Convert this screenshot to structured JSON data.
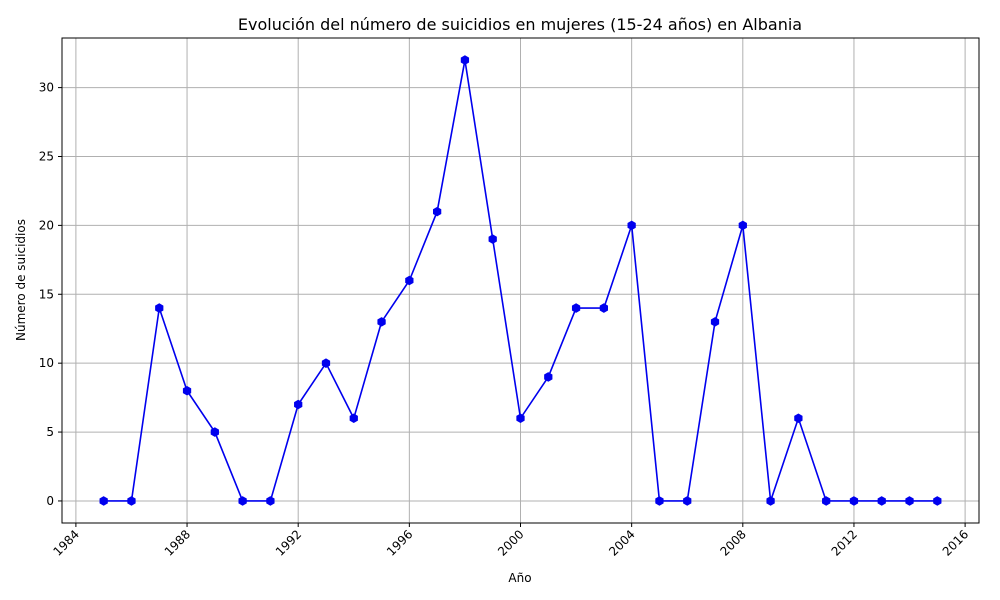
{
  "chart_data": {
    "type": "line",
    "title": "Evolución del número de suicidios en mujeres (15-24 años) en Albania",
    "xlabel": "Año",
    "ylabel": "Número de suicidios",
    "x": [
      1985,
      1986,
      1987,
      1988,
      1989,
      1990,
      1991,
      1992,
      1993,
      1994,
      1995,
      1996,
      1997,
      1998,
      1999,
      2000,
      2001,
      2002,
      2003,
      2004,
      2005,
      2006,
      2007,
      2008,
      2009,
      2010,
      2011,
      2012,
      2013,
      2014,
      2015
    ],
    "series": [
      {
        "values": [
          0,
          0,
          14,
          8,
          5,
          0,
          0,
          7,
          10,
          6,
          13,
          16,
          21,
          32,
          19,
          6,
          9,
          14,
          14,
          20,
          0,
          0,
          13,
          20,
          0,
          6,
          0,
          0,
          0,
          0,
          0
        ],
        "color": "#0000ee",
        "marker": "hexagon"
      }
    ],
    "xticks": [
      "1984",
      "1988",
      "1992",
      "1996",
      "2000",
      "2004",
      "2008",
      "2012",
      "2016"
    ],
    "xtick_values": [
      1984,
      1988,
      1992,
      1996,
      2000,
      2004,
      2008,
      2012,
      2016
    ],
    "yticks": [
      "0",
      "5",
      "10",
      "15",
      "20",
      "25",
      "30"
    ],
    "ytick_values": [
      0,
      5,
      10,
      15,
      20,
      25,
      30
    ],
    "xlim": [
      1983.5,
      2016.5
    ],
    "ylim": [
      -1.6,
      33.6
    ],
    "grid": true,
    "xtick_rotation": 45
  }
}
